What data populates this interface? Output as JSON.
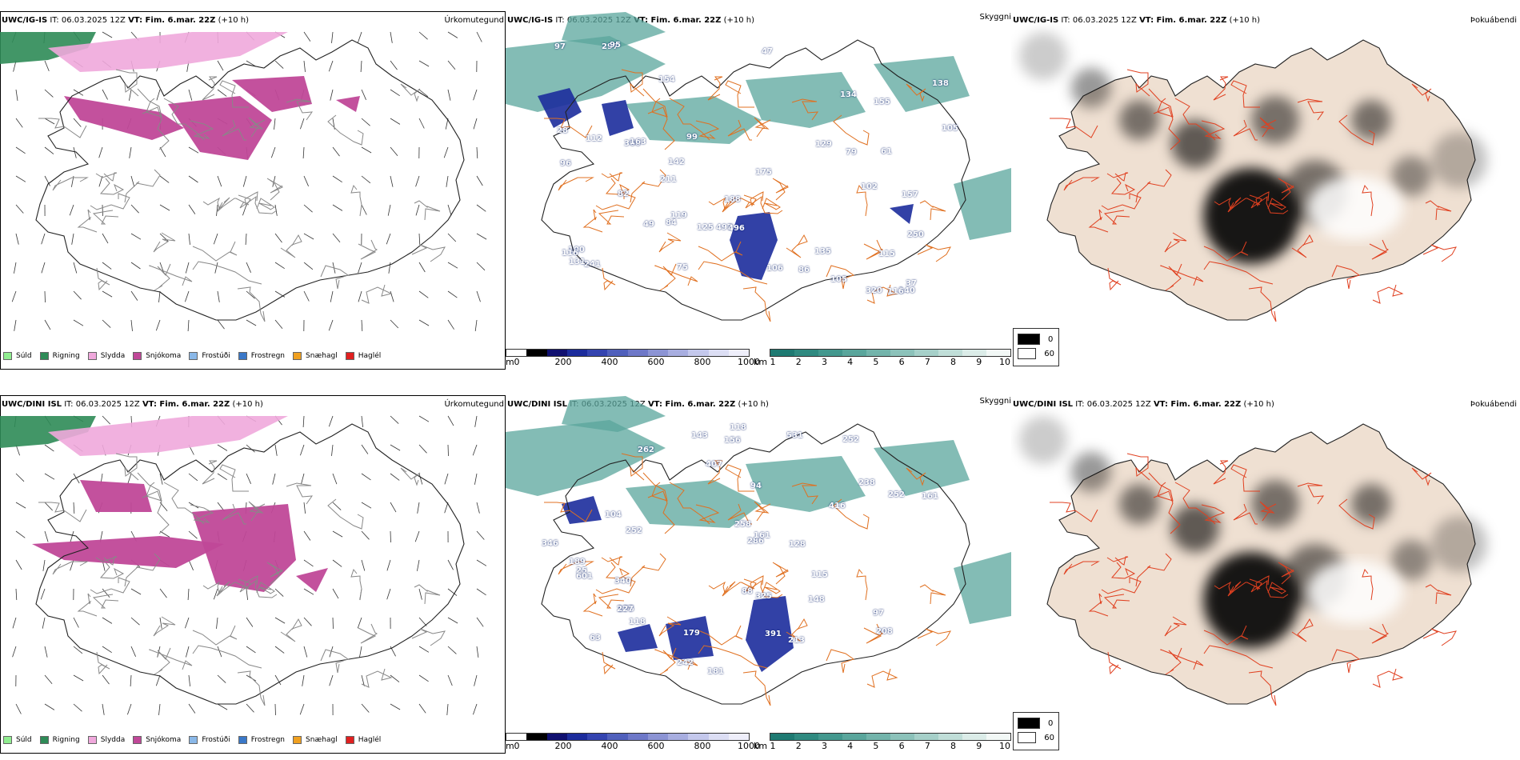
{
  "rows": [
    {
      "model": "UWC/IG-IS",
      "it": "IT: 06.03.2025 12Z",
      "vt": "VT: Fim. 6.mar. 22Z",
      "lead": "(+10 h)",
      "labels": [
        "188",
        "366",
        "297",
        "102",
        "140",
        "154",
        "497",
        "211",
        "84",
        "79",
        "61",
        "47",
        "97",
        "320",
        "142",
        "135",
        "175",
        "105",
        "138",
        "99",
        "116",
        "163",
        "86",
        "49",
        "115",
        "129",
        "106",
        "100",
        "155",
        "116",
        "119",
        "125",
        "241",
        "250",
        "134",
        "28",
        "112",
        "95",
        "82",
        "75",
        "96",
        "37",
        "157",
        "105",
        "496",
        "131"
      ]
    },
    {
      "model": "UWC/DINI ISL",
      "it": "IT: 06.03.2025 12Z",
      "vt": "VT: Fim. 6.mar. 22Z",
      "lead": "(+10 h)",
      "labels": [
        "63",
        "252",
        "262",
        "238",
        "325",
        "252",
        "340",
        "175",
        "252",
        "416",
        "189",
        "118",
        "148",
        "286",
        "181",
        "143",
        "208",
        "346",
        "227",
        "242",
        "213",
        "156",
        "407",
        "161",
        "258",
        "179",
        "25",
        "531",
        "94",
        "115",
        "104",
        "118",
        "391",
        "88",
        "97",
        "601",
        "161",
        "128"
      ]
    }
  ],
  "panel_titles": {
    "precip": "Úrkomutegund",
    "clouds": "Skyggni",
    "fog": "Þokuábendi"
  },
  "legend_precip": [
    {
      "label": "Súld",
      "color": "#90ee90"
    },
    {
      "label": "Rigning",
      "color": "#2e8b57"
    },
    {
      "label": "Slydda",
      "color": "#f0a8dc"
    },
    {
      "label": "Snjókoma",
      "color": "#c04898"
    },
    {
      "label": "Frostúði",
      "color": "#8ab8e8"
    },
    {
      "label": "Frostregn",
      "color": "#3a78c8"
    },
    {
      "label": "Snæhagl",
      "color": "#f0a020"
    },
    {
      "label": "Haglél",
      "color": "#e02020"
    }
  ],
  "cbar_height": {
    "unit": "m",
    "ticks": [
      "0",
      "200",
      "400",
      "600",
      "800",
      "1000"
    ],
    "colors": [
      "#fff",
      "#000",
      "#101070",
      "#1c2c9c",
      "#3444b0",
      "#5060bc",
      "#6e78c8",
      "#8c94d4",
      "#a8aee0",
      "#c4c8ec",
      "#dcdef4",
      "#eeeefa"
    ]
  },
  "cbar_visibility": {
    "unit": "km",
    "ticks": [
      "1",
      "2",
      "3",
      "4",
      "5",
      "6",
      "7",
      "8",
      "9",
      "10"
    ],
    "colors": [
      "#1e7a72",
      "#2f8a80",
      "#43988e",
      "#5aa69c",
      "#73b4ab",
      "#8cc2ba",
      "#a6d0c9",
      "#c0ded8",
      "#dbece8",
      "#f2f8f6"
    ]
  },
  "legend_fog": [
    {
      "label": "0",
      "color": "#000000"
    },
    {
      "label": "60",
      "color": "#ffffff"
    }
  ]
}
